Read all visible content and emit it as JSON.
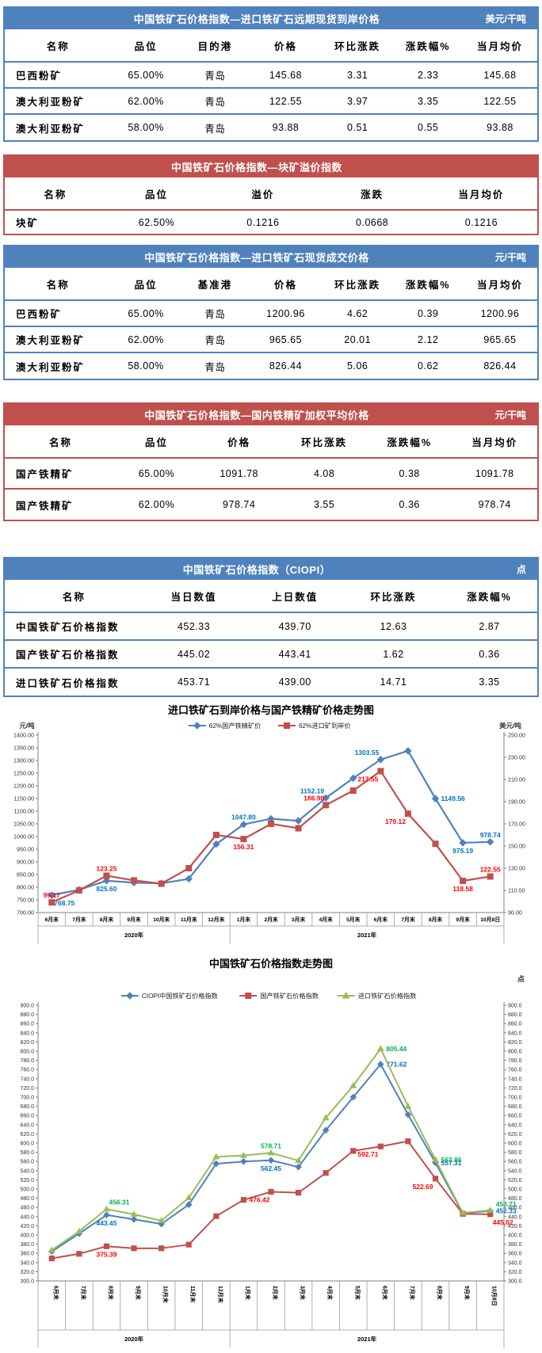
{
  "colors": {
    "blue_theme": "#4f81bd",
    "red_theme": "#c0504d",
    "series_blue": "#4f81bd",
    "series_red": "#c0504d",
    "series_green": "#9bbb59",
    "label_blue": "#0070c0",
    "label_red": "#ff0000",
    "label_green": "#00b050"
  },
  "tables": [
    {
      "title": "中国铁矿石价格指数—进口铁矿石远期现货到岸价格",
      "unit": "美元/干吨",
      "theme": "blue",
      "columns": [
        "名称",
        "品位",
        "目的港",
        "价格",
        "环比涨跌",
        "涨跌幅%",
        "当月均价"
      ],
      "rows": [
        [
          "巴西粉矿",
          "65.00%",
          "青岛",
          "145.68",
          "3.31",
          "2.33",
          "145.68"
        ],
        [
          "澳大利亚粉矿",
          "62.00%",
          "青岛",
          "122.55",
          "3.97",
          "3.35",
          "122.55"
        ],
        [
          "澳大利亚粉矿",
          "58.00%",
          "青岛",
          "93.88",
          "0.51",
          "0.55",
          "93.88"
        ]
      ]
    },
    {
      "title": "中国铁矿石价格指数—块矿溢价指数",
      "unit": "",
      "theme": "red",
      "columns": [
        "名称",
        "品位",
        "溢价",
        "涨跌",
        "当月均价"
      ],
      "rows": [
        [
          "块矿",
          "62.50%",
          "0.1216",
          "0.0668",
          "0.1216"
        ]
      ]
    },
    {
      "title": "中国铁矿石价格指数—进口铁矿石现货成交价格",
      "unit": "元/干吨",
      "theme": "blue",
      "columns": [
        "名称",
        "品位",
        "基准港",
        "价格",
        "环比涨跌",
        "涨跌幅%",
        "当月均价"
      ],
      "rows": [
        [
          "巴西粉矿",
          "65.00%",
          "青岛",
          "1200.96",
          "4.62",
          "0.39",
          "1200.96"
        ],
        [
          "澳大利亚粉矿",
          "62.00%",
          "青岛",
          "965.65",
          "20.01",
          "2.12",
          "965.65"
        ],
        [
          "澳大利亚粉矿",
          "58.00%",
          "青岛",
          "826.44",
          "5.06",
          "0.62",
          "826.44"
        ]
      ]
    },
    {
      "title": "中国铁矿石价格指数—国内铁精矿加权平均价格",
      "unit": "元/干吨",
      "theme": "red",
      "columns": [
        "名称",
        "品位",
        "价格",
        "环比涨跌",
        "涨跌幅%",
        "当月均价"
      ],
      "rows": [
        [
          "国产铁精矿",
          "65.00%",
          "1091.78",
          "4.08",
          "0.38",
          "1091.78"
        ],
        [
          "国产铁精矿",
          "62.00%",
          "978.74",
          "3.55",
          "0.36",
          "978.74"
        ]
      ]
    },
    {
      "title": "中国铁矿石价格指数（CIOPI）",
      "unit": "点",
      "theme": "blue",
      "columns": [
        "名称",
        "当日数值",
        "上日数值",
        "环比涨跌",
        "涨跌幅%"
      ],
      "rows": [
        [
          "中国铁矿石价格指数",
          "452.33",
          "439.70",
          "12.63",
          "2.87"
        ],
        [
          "国产铁矿石价格指数",
          "445.02",
          "443.41",
          "1.62",
          "0.36"
        ],
        [
          "进口铁矿石价格指数",
          "453.71",
          "439.00",
          "14.71",
          "3.35"
        ]
      ]
    }
  ],
  "chart_data": [
    {
      "type": "line",
      "title": "进口铁矿石到岸价格与国产铁精矿价格走势图",
      "left_axis": {
        "label": "元/吨",
        "min": 700,
        "max": 1400,
        "step": 50,
        "decimals": 2
      },
      "right_axis": {
        "label": "美元/吨",
        "min": 90,
        "max": 250,
        "step": 20,
        "decimals": 2
      },
      "categories": [
        "6月末",
        "7月末",
        "8月末",
        "9月末",
        "10月末",
        "11月末",
        "12月末",
        "1月末",
        "2月末",
        "3月末",
        "4月末",
        "5月末",
        "6月末",
        "7月末",
        "8月末",
        "9月末",
        "10月8日"
      ],
      "year_groups": [
        {
          "label": "2020年",
          "span": 7
        },
        {
          "label": "2021年",
          "span": 10
        }
      ],
      "grid": false,
      "legend_position": "top",
      "series": [
        {
          "name": "62%国产铁精矿价",
          "axis": "left",
          "color": "#4f81bd",
          "label_color": "#0070c0",
          "marker": "diamond",
          "values": [
            768.75,
            790,
            825.6,
            818,
            815,
            833,
            970,
            1047.8,
            1070,
            1062,
            1152.19,
            1230,
            1303.55,
            1338,
            1149.56,
            975.19,
            978.74
          ],
          "labels": {
            "0": {
              "t": "768.75",
              "p": "below-right"
            },
            "2": {
              "t": "825.60",
              "p": "below"
            },
            "7": {
              "t": "1047.80",
              "p": "above"
            },
            "10": {
              "t": "1152.19",
              "p": "above-left"
            },
            "12": {
              "t": "1303.55",
              "p": "above-left"
            },
            "14": {
              "t": "1149.56",
              "p": "right"
            },
            "15": {
              "t": "975.19",
              "p": "below"
            },
            "16": {
              "t": "978.74",
              "p": "above"
            }
          }
        },
        {
          "name": "62%进口矿到岸价",
          "axis": "right",
          "color": "#c0504d",
          "label_color": "#ff0000",
          "marker": "square",
          "values": [
            99.17,
            110,
            123.25,
            119,
            116,
            130,
            160,
            156.31,
            170,
            166,
            186.9,
            200,
            217.55,
            179.12,
            152,
            118.58,
            122.55
          ],
          "labels": {
            "0": {
              "t": "99.17",
              "p": "above"
            },
            "2": {
              "t": "123.25",
              "p": "above"
            },
            "7": {
              "t": "156.31",
              "p": "below"
            },
            "10": {
              "t": "186.90",
              "p": "above-left"
            },
            "12": {
              "t": "217.55",
              "p": "below-left"
            },
            "13": {
              "t": "179.12",
              "p": "below-left"
            },
            "15": {
              "t": "118.58",
              "p": "below"
            },
            "16": {
              "t": "122.55",
              "p": "above"
            }
          }
        }
      ]
    },
    {
      "type": "line",
      "title": "中国铁矿石价格指数走势图",
      "unit": "点",
      "left_axis": {
        "label": "",
        "min": 300,
        "max": 900,
        "step": 20,
        "decimals": 1
      },
      "right_axis_mirror": true,
      "categories": [
        "6月末",
        "7月末",
        "8月末",
        "9月末",
        "10月末",
        "11月末",
        "12月末",
        "1月末",
        "2月末",
        "3月末",
        "4月末",
        "5月末",
        "6月末",
        "7月末",
        "8月末",
        "9月末",
        "10月8日"
      ],
      "year_groups": [
        {
          "label": "2020年",
          "span": 7
        },
        {
          "label": "2021年",
          "span": 10
        }
      ],
      "grid": false,
      "legend_position": "top",
      "series": [
        {
          "name": "CIOPI中国铁矿石价格指数",
          "axis": "left",
          "color": "#4f81bd",
          "label_color": "#0070c0",
          "marker": "diamond",
          "values": [
            364,
            403,
            443.45,
            434,
            424,
            466,
            555,
            560,
            562.45,
            548,
            628,
            700,
            771.62,
            662,
            557.31,
            447,
            452.33
          ],
          "labels": {
            "2": {
              "t": "443.45",
              "p": "below"
            },
            "8": {
              "t": "562.45",
              "p": "below"
            },
            "12": {
              "t": "771.62",
              "p": "right"
            },
            "14": {
              "t": "557.31",
              "p": "right"
            },
            "16": {
              "t": "452.33",
              "p": "right"
            }
          }
        },
        {
          "name": "国产铁矿石价格指数",
          "axis": "left",
          "color": "#c0504d",
          "label_color": "#ff0000",
          "marker": "square",
          "values": [
            349,
            359,
            375.39,
            371,
            371,
            379,
            441,
            476.42,
            494,
            492,
            535,
            583,
            592.71,
            604,
            522.69,
            446,
            445.02
          ],
          "labels": {
            "2": {
              "t": "375.39",
              "p": "below"
            },
            "7": {
              "t": "476.42",
              "p": "right"
            },
            "12": {
              "t": "592.71",
              "p": "below-left"
            },
            "14": {
              "t": "522.69",
              "p": "below-left"
            },
            "16": {
              "t": "445.02",
              "p": "below-right"
            }
          }
        },
        {
          "name": "进口铁矿石价格指数",
          "axis": "left",
          "color": "#9bbb59",
          "label_color": "#00b050",
          "marker": "triangle",
          "values": [
            367,
            408,
            456.31,
            445,
            431,
            481,
            570,
            573,
            578.71,
            562,
            655,
            725,
            805.44,
            680,
            563.86,
            448,
            453.71
          ],
          "labels": {
            "2": {
              "t": "456.31",
              "p": "above-right"
            },
            "8": {
              "t": "578.71",
              "p": "above"
            },
            "12": {
              "t": "805.44",
              "p": "right"
            },
            "14": {
              "t": "563.86",
              "p": "right"
            },
            "16": {
              "t": "453.71",
              "p": "right-above"
            }
          }
        }
      ]
    }
  ]
}
